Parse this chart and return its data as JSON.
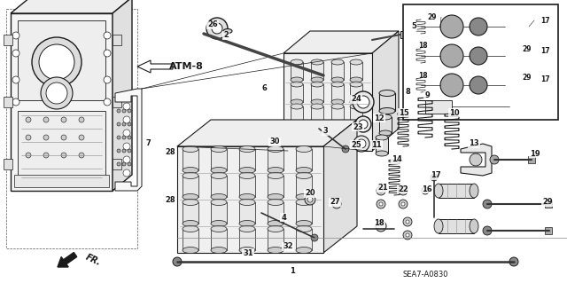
{
  "bg_color": "#ffffff",
  "diagram_code": "SEA7-A0830",
  "fig_width": 6.4,
  "fig_height": 3.19,
  "dpi": 100,
  "atm_label": "ATM-8",
  "fr_label": "FR.",
  "lc": "#1a1a1a",
  "label_fontsize": 6.0
}
